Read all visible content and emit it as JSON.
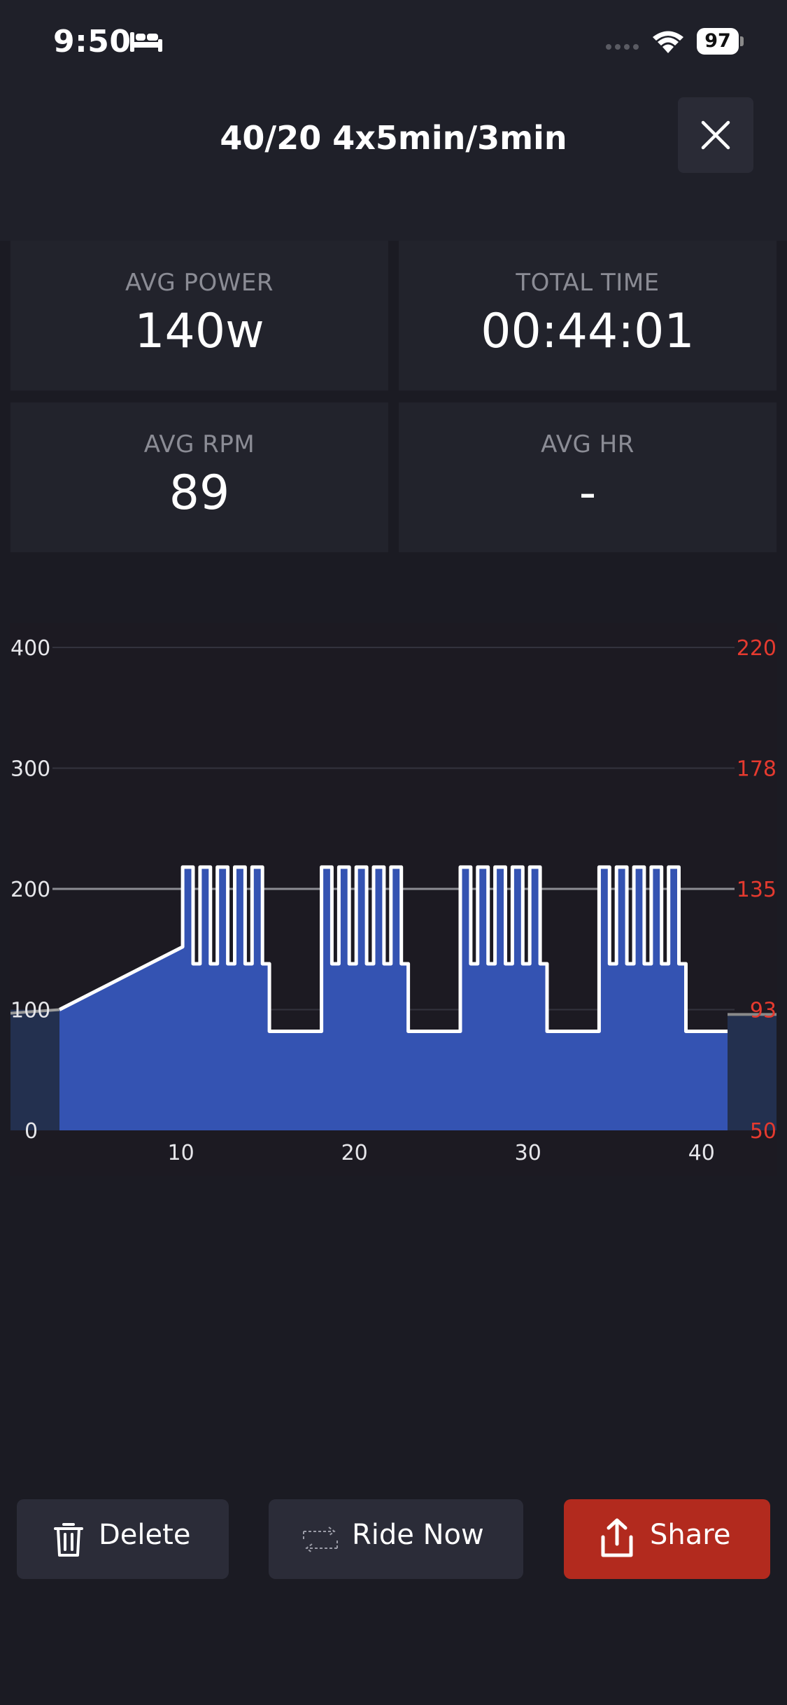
{
  "status_bar": {
    "time": "9:50",
    "battery": "97"
  },
  "header": {
    "title": "40/20 4x5min/3min"
  },
  "stats": [
    {
      "label": "AVG POWER",
      "value": "140w"
    },
    {
      "label": "TOTAL TIME",
      "value": "00:44:01"
    },
    {
      "label": "AVG RPM",
      "value": "89"
    },
    {
      "label": "AVG HR",
      "value": "-"
    }
  ],
  "actions": {
    "delete": "Delete",
    "ride_now": "Ride Now",
    "share": "Share"
  },
  "colors": {
    "power_fill": "#3453b2",
    "power_line": "#ffffff",
    "hr_axis": "#e53a2f",
    "share_button": "#b22a1e",
    "background": "#1b1b23"
  },
  "chart_data": {
    "type": "area",
    "x_unit": "minutes",
    "xlim": [
      0,
      44
    ],
    "ylim": [
      0,
      400
    ],
    "y_ticks": [
      0,
      100,
      200,
      300,
      400
    ],
    "y2_ticks": [
      50,
      93,
      135,
      178,
      220
    ],
    "x_ticks": [
      10,
      20,
      30,
      40
    ],
    "grid": true,
    "reference_line": 200,
    "series": [
      {
        "x": [
          3,
          10.1,
          10.1,
          10.7,
          10.7,
          11.1,
          11.1,
          11.7,
          11.7,
          12.1,
          12.1,
          12.7,
          12.7,
          13.1,
          13.1,
          13.7,
          13.7,
          14.1,
          14.1,
          14.7,
          14.7,
          15.1,
          15.1,
          18.1,
          18.1,
          18.7,
          18.7,
          19.1,
          19.1,
          19.7,
          19.7,
          20.1,
          20.1,
          20.7,
          20.7,
          21.1,
          21.1,
          21.7,
          21.7,
          22.1,
          22.1,
          22.7,
          22.7,
          23.1,
          23.1,
          26.1,
          26.1,
          26.7,
          26.7,
          27.1,
          27.1,
          27.7,
          27.7,
          28.1,
          28.1,
          28.7,
          28.7,
          29.1,
          29.1,
          29.7,
          29.7,
          30.1,
          30.1,
          30.7,
          30.7,
          31.1,
          31.1,
          34.1,
          34.1,
          34.7,
          34.7,
          35.1,
          35.1,
          35.7,
          35.7,
          36.1,
          36.1,
          36.7,
          36.7,
          37.1,
          37.1,
          37.7,
          37.7,
          38.1,
          38.1,
          38.7,
          38.7,
          39.1,
          39.1,
          41.5
        ],
        "values": [
          100,
          152,
          218,
          218,
          138,
          138,
          218,
          218,
          138,
          138,
          218,
          218,
          138,
          138,
          218,
          218,
          138,
          138,
          218,
          218,
          138,
          138,
          82,
          82,
          218,
          218,
          138,
          138,
          218,
          218,
          138,
          138,
          218,
          218,
          138,
          138,
          218,
          218,
          138,
          138,
          218,
          218,
          138,
          138,
          82,
          82,
          218,
          218,
          138,
          138,
          218,
          218,
          138,
          138,
          218,
          218,
          138,
          138,
          218,
          218,
          138,
          138,
          218,
          218,
          138,
          138,
          82,
          82,
          218,
          218,
          138,
          138,
          218,
          218,
          138,
          138,
          218,
          218,
          138,
          138,
          218,
          218,
          138,
          138,
          218,
          218,
          138,
          138,
          82,
          82
        ]
      }
    ]
  }
}
